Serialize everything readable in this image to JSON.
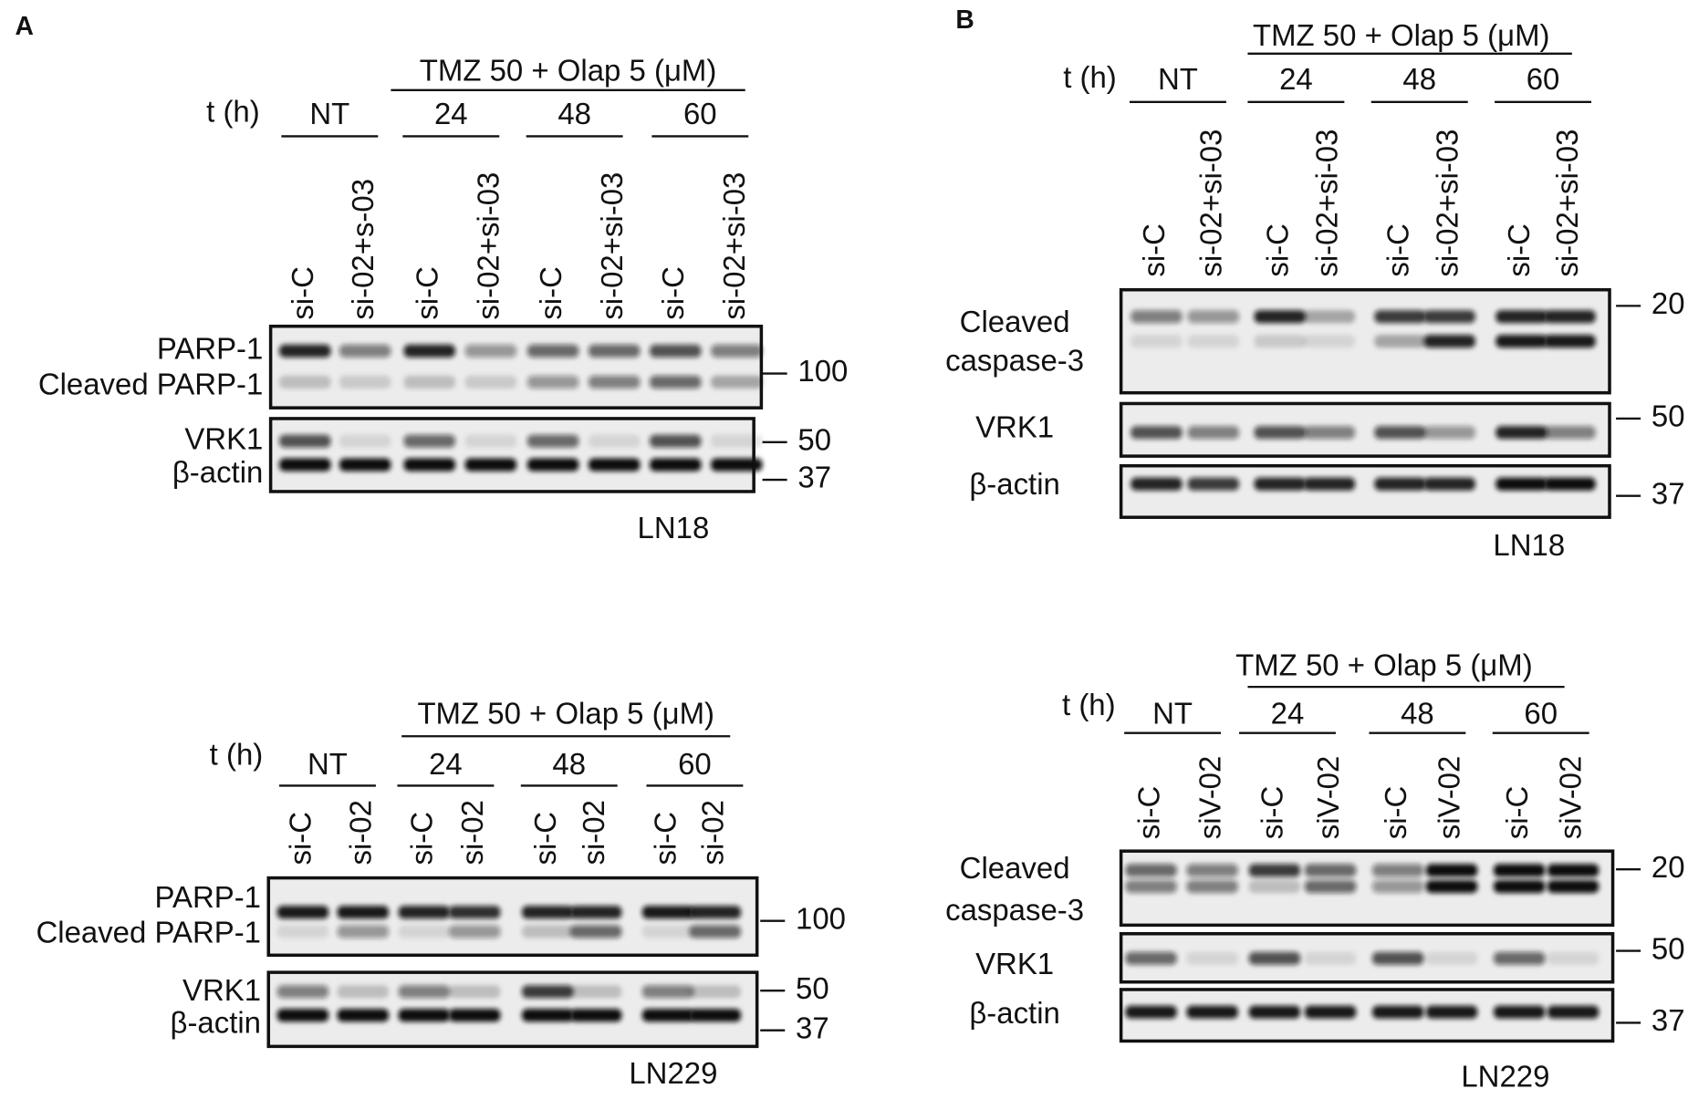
{
  "panels": [
    {
      "label": "A",
      "blots": [
        {
          "treatment": "TMZ 50 + Olap 5 (μM)",
          "time_label": "t (h)",
          "groups": [
            "NT",
            "24",
            "48",
            "60"
          ],
          "lanes": [
            "si-C",
            "si-02+s-03",
            "si-C",
            "si-02+si-03",
            "si-C",
            "si-02+si-03",
            "si-C",
            "si-02+si-03"
          ],
          "rows": [
            [
              "PARP-1"
            ],
            [
              "Cleaved PARP-1"
            ],
            [
              "VRK1"
            ],
            [
              "β-actin"
            ]
          ],
          "markers": [
            100,
            50,
            37
          ],
          "cell_line": "LN18"
        },
        {
          "treatment": "TMZ 50 + Olap 5 (μM)",
          "time_label": "t (h)",
          "groups": [
            "NT",
            "24",
            "48",
            "60"
          ],
          "lanes": [
            "si-C",
            "si-02",
            "si-C",
            "si-02",
            "si-C",
            "si-02",
            "si-C",
            "si-02"
          ],
          "rows": [
            [
              "PARP-1"
            ],
            [
              "Cleaved PARP-1"
            ],
            [
              "VRK1"
            ],
            [
              "β-actin"
            ]
          ],
          "markers": [
            100,
            50,
            37
          ],
          "cell_line": "LN229"
        }
      ]
    },
    {
      "label": "B",
      "blots": [
        {
          "treatment": "TMZ 50 + Olap 5 (μM)",
          "time_label": "t (h)",
          "groups": [
            "NT",
            "24",
            "48",
            "60"
          ],
          "lanes": [
            "si-C",
            "si-02+si-03",
            "si-C",
            "si-02+si-03",
            "si-C",
            "si-02+si-03",
            "si-C",
            "si-02+si-03"
          ],
          "rows": [
            [
              "Cleaved",
              "caspase-3"
            ],
            [
              "VRK1"
            ],
            [
              "β-actin"
            ]
          ],
          "markers": [
            20,
            50,
            37
          ],
          "cell_line": "LN18"
        },
        {
          "treatment": "TMZ 50 + Olap 5 (μM)",
          "time_label": "t (h)",
          "groups": [
            "NT",
            "24",
            "48",
            "60"
          ],
          "lanes": [
            "si-C",
            "siV-02",
            "si-C",
            "siV-02",
            "si-C",
            "siV-02",
            "si-C",
            "siV-02"
          ],
          "rows": [
            [
              "Cleaved",
              "caspase-3"
            ],
            [
              "VRK1"
            ],
            [
              "β-actin"
            ]
          ],
          "markers": [
            20,
            50,
            37
          ],
          "cell_line": "LN229"
        }
      ]
    }
  ]
}
